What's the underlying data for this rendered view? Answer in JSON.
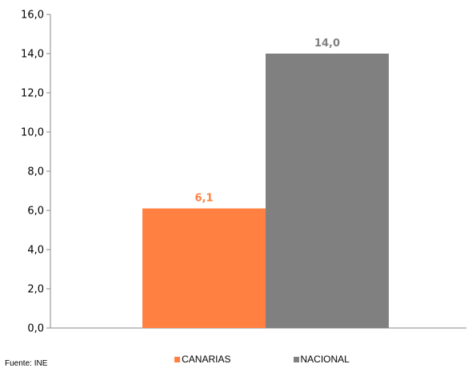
{
  "chart_data": {
    "type": "bar",
    "categories": [
      "CANARIAS",
      "NACIONAL"
    ],
    "values": [
      6.1,
      14.0
    ],
    "data_labels": [
      "6,1",
      "14,0"
    ],
    "colors": [
      "#FF8040",
      "#808080"
    ],
    "ylim": [
      0,
      16
    ],
    "yticks": [
      "0,0",
      "2,0",
      "4,0",
      "6,0",
      "8,0",
      "10,0",
      "12,0",
      "14,0",
      "16,0"
    ],
    "ytick_values": [
      0,
      2,
      4,
      6,
      8,
      10,
      12,
      14,
      16
    ],
    "grid": false,
    "legend_position": "bottom"
  },
  "legend": [
    {
      "label": "CANARIAS",
      "color": "#FF8040"
    },
    {
      "label": "NACIONAL",
      "color": "#808080"
    }
  ],
  "source": "Fuente: INE"
}
